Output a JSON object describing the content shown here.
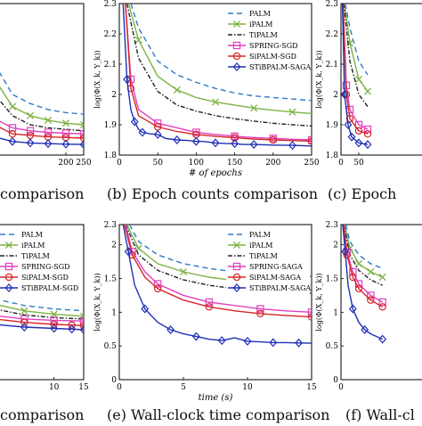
{
  "captions": {
    "top_left": "comparison",
    "top_middle": "(b) Epoch counts comparison",
    "top_right": "(c) Epoch",
    "bottom_left": "comparison",
    "bottom_middle": "(e) Wall-clock time comparison",
    "bottom_right": "(f) Wall-cl"
  },
  "colors": {
    "PALM": "#2c7bc8",
    "iPALM": "#7cb342",
    "TiPALM": "#222222",
    "SPRING": "#e040c0",
    "SiPALM": "#d62728",
    "STiBPALM": "#1f2fb4"
  },
  "chart_data": [
    {
      "id": "a",
      "type": "line",
      "xlim": [
        0,
        250
      ],
      "ylim": [
        1.8,
        2.3
      ],
      "x_ticks": [
        "200",
        "250"
      ],
      "y_ticks": [],
      "xlabel": "",
      "ylabel": "",
      "series": [
        {
          "key": "PALM",
          "x": [
            0,
            50,
            100,
            150,
            200,
            250
          ],
          "y": [
            2.1,
            2.0,
            1.97,
            1.95,
            1.94,
            1.935
          ]
        },
        {
          "key": "iPALM",
          "x": [
            0,
            50,
            100,
            150,
            200,
            250
          ],
          "y": [
            2.05,
            1.96,
            1.93,
            1.915,
            1.905,
            1.9
          ]
        },
        {
          "key": "TiPALM",
          "x": [
            0,
            50,
            100,
            150,
            200,
            250
          ],
          "y": [
            2.0,
            1.93,
            1.9,
            1.89,
            1.885,
            1.88
          ]
        },
        {
          "key": "SPRING",
          "x": [
            0,
            50,
            100,
            150,
            200,
            250
          ],
          "y": [
            1.92,
            1.89,
            1.88,
            1.875,
            1.872,
            1.87
          ]
        },
        {
          "key": "SiPALM",
          "x": [
            0,
            50,
            100,
            150,
            200,
            250
          ],
          "y": [
            1.9,
            1.87,
            1.865,
            1.86,
            1.858,
            1.856
          ]
        },
        {
          "key": "STiBPALM",
          "x": [
            0,
            50,
            100,
            150,
            200,
            250
          ],
          "y": [
            1.86,
            1.845,
            1.84,
            1.838,
            1.836,
            1.835
          ]
        }
      ]
    },
    {
      "id": "b",
      "type": "line",
      "xlim": [
        0,
        250
      ],
      "ylim": [
        1.8,
        2.3
      ],
      "x_ticks": [
        "0",
        "50",
        "100",
        "150",
        "200",
        "250"
      ],
      "y_ticks": [
        "1.8",
        "1.9",
        "2",
        "2.1",
        "2.2",
        "2.3"
      ],
      "xlabel": "# of epochs",
      "ylabel": "log(Φ(X_k, Y_k))",
      "legend": [
        "PALM",
        "iPALM",
        "TiPALM",
        "SPRING-SGD",
        "SiPALM-SGD",
        "STiBPALM-SAGA"
      ],
      "series": [
        {
          "key": "PALM",
          "x": [
            15,
            25,
            50,
            75,
            100,
            125,
            150,
            175,
            200,
            225,
            250
          ],
          "y": [
            2.3,
            2.22,
            2.11,
            2.065,
            2.04,
            2.02,
            2.005,
            1.995,
            1.99,
            1.985,
            1.98
          ]
        },
        {
          "key": "iPALM",
          "x": [
            12,
            25,
            50,
            75,
            100,
            125,
            150,
            175,
            200,
            225,
            250
          ],
          "y": [
            2.3,
            2.18,
            2.06,
            2.015,
            1.99,
            1.975,
            1.965,
            1.955,
            1.948,
            1.942,
            1.937
          ]
        },
        {
          "key": "TiPALM",
          "x": [
            10,
            25,
            50,
            75,
            100,
            125,
            150,
            175,
            200,
            225,
            250
          ],
          "y": [
            2.3,
            2.12,
            2.01,
            1.965,
            1.945,
            1.93,
            1.92,
            1.912,
            1.905,
            1.9,
            1.896
          ]
        },
        {
          "key": "SPRING",
          "x": [
            8,
            15,
            25,
            50,
            75,
            100,
            125,
            150,
            175,
            200,
            225,
            250
          ],
          "y": [
            2.3,
            2.05,
            1.95,
            1.905,
            1.89,
            1.875,
            1.868,
            1.862,
            1.858,
            1.855,
            1.852,
            1.85
          ]
        },
        {
          "key": "SiPALM",
          "x": [
            8,
            15,
            25,
            50,
            75,
            100,
            125,
            150,
            175,
            200,
            225,
            250
          ],
          "y": [
            2.3,
            2.02,
            1.93,
            1.893,
            1.878,
            1.868,
            1.862,
            1.857,
            1.853,
            1.85,
            1.848,
            1.846
          ]
        },
        {
          "key": "STiBPALM",
          "x": [
            5,
            10,
            15,
            20,
            25,
            30,
            40,
            50,
            60,
            75,
            90,
            100,
            110,
            125,
            140,
            150,
            160,
            175,
            200,
            225,
            250
          ],
          "y": [
            2.3,
            2.05,
            1.95,
            1.91,
            1.885,
            1.875,
            1.87,
            1.868,
            1.855,
            1.85,
            1.848,
            1.845,
            1.845,
            1.84,
            1.838,
            1.838,
            1.835,
            1.835,
            1.833,
            1.832,
            1.83
          ]
        }
      ]
    },
    {
      "id": "c",
      "type": "line",
      "xlim": [
        0,
        250
      ],
      "ylim": [
        1.8,
        2.3
      ],
      "x_ticks": [
        "0",
        "50"
      ],
      "y_ticks": [
        "1.8",
        "1.9",
        "2",
        "2.1",
        "2.2",
        "2.3"
      ],
      "xlabel": "",
      "ylabel": "log(Φ(X_k, Y_k))",
      "series": [
        {
          "key": "PALM",
          "x": [
            12,
            25,
            50,
            75
          ],
          "y": [
            2.3,
            2.22,
            2.11,
            2.065
          ]
        },
        {
          "key": "iPALM",
          "x": [
            10,
            25,
            50,
            75
          ],
          "y": [
            2.3,
            2.17,
            2.05,
            2.01
          ]
        },
        {
          "key": "TiPALM",
          "x": [
            8,
            25,
            50,
            75
          ],
          "y": [
            2.3,
            2.11,
            2.0,
            1.96
          ]
        },
        {
          "key": "SPRING",
          "x": [
            6,
            15,
            25,
            50,
            75
          ],
          "y": [
            2.3,
            2.03,
            1.95,
            1.9,
            1.885
          ]
        },
        {
          "key": "SiPALM",
          "x": [
            6,
            15,
            25,
            50,
            75
          ],
          "y": [
            2.3,
            2.0,
            1.92,
            1.88,
            1.87
          ]
        },
        {
          "key": "STiBPALM",
          "x": [
            4,
            10,
            20,
            30,
            50,
            75
          ],
          "y": [
            2.3,
            2.0,
            1.9,
            1.86,
            1.84,
            1.835
          ]
        }
      ]
    },
    {
      "id": "d",
      "type": "line",
      "xlim": [
        0,
        15
      ],
      "ylim": [
        0,
        2.3
      ],
      "x_ticks": [
        "10",
        "15"
      ],
      "y_ticks": [],
      "xlabel": "",
      "ylabel": "",
      "legend": [
        "PALM",
        "iPALM",
        "TiPALM",
        "SPRING-SGD",
        "SiPALM-SGD",
        "STiBPALM-SGD"
      ],
      "series": [
        {
          "key": "PALM",
          "x": [
            0,
            5,
            10,
            15
          ],
          "y": [
            1.2,
            1.1,
            1.05,
            1.02
          ]
        },
        {
          "key": "iPALM",
          "x": [
            0,
            5,
            10,
            15
          ],
          "y": [
            1.12,
            1.02,
            0.97,
            0.94
          ]
        },
        {
          "key": "TiPALM",
          "x": [
            0,
            5,
            10,
            15
          ],
          "y": [
            1.05,
            0.96,
            0.92,
            0.9
          ]
        },
        {
          "key": "SPRING",
          "x": [
            0,
            5,
            10,
            15
          ],
          "y": [
            0.95,
            0.9,
            0.88,
            0.87
          ]
        },
        {
          "key": "SiPALM",
          "x": [
            0,
            5,
            10,
            13,
            15
          ],
          "y": [
            0.9,
            0.85,
            0.82,
            0.81,
            0.8
          ]
        },
        {
          "key": "STiBPALM",
          "x": [
            0,
            5,
            10,
            13,
            15
          ],
          "y": [
            0.82,
            0.78,
            0.76,
            0.75,
            0.74
          ]
        }
      ]
    },
    {
      "id": "e",
      "type": "line",
      "xlim": [
        0,
        15
      ],
      "ylim": [
        0,
        2.3
      ],
      "x_ticks": [
        "0",
        "5",
        "10",
        "15"
      ],
      "y_ticks": [
        "0",
        "0.5",
        "1",
        "1.5",
        "2",
        "2.3"
      ],
      "xlabel": "time (s)",
      "ylabel": "log(Φ(X_k, Y_k))",
      "legend": [
        "PALM",
        "iPALM",
        "TiPALM",
        "SPRING-SAGA",
        "SiPALM-SAGA",
        "STiBPALM-SAGA"
      ],
      "series": [
        {
          "key": "PALM",
          "x": [
            0.8,
            1.5,
            3,
            5,
            7,
            9,
            11,
            13,
            15
          ],
          "y": [
            2.3,
            2.05,
            1.85,
            1.72,
            1.65,
            1.6,
            1.57,
            1.55,
            1.53
          ]
        },
        {
          "key": "iPALM",
          "x": [
            0.6,
            1.5,
            3,
            5,
            7,
            9,
            11,
            13,
            15
          ],
          "y": [
            2.3,
            1.95,
            1.72,
            1.6,
            1.52,
            1.47,
            1.44,
            1.42,
            1.4
          ]
        },
        {
          "key": "TiPALM",
          "x": [
            0.5,
            1.5,
            3,
            5,
            7,
            9,
            11,
            13,
            15
          ],
          "y": [
            2.3,
            1.85,
            1.62,
            1.48,
            1.4,
            1.35,
            1.32,
            1.3,
            1.28
          ]
        },
        {
          "key": "SPRING",
          "x": [
            0.5,
            1,
            2,
            3,
            5,
            7,
            9,
            11,
            13,
            15
          ],
          "y": [
            2.3,
            1.9,
            1.6,
            1.42,
            1.25,
            1.15,
            1.1,
            1.05,
            1.02,
            1.0
          ]
        },
        {
          "key": "SiPALM",
          "x": [
            0.4,
            1,
            2,
            3,
            5,
            7,
            9,
            11,
            13,
            15
          ],
          "y": [
            2.3,
            1.85,
            1.52,
            1.35,
            1.18,
            1.08,
            1.02,
            0.98,
            0.95,
            0.93
          ]
        },
        {
          "key": "STiBPALM",
          "x": [
            0.3,
            0.7,
            1.2,
            2,
            3,
            4,
            5,
            6,
            7,
            8,
            9,
            10,
            11,
            12,
            13,
            14,
            15
          ],
          "y": [
            2.3,
            1.9,
            1.4,
            1.05,
            0.85,
            0.74,
            0.68,
            0.64,
            0.6,
            0.58,
            0.62,
            0.57,
            0.56,
            0.55,
            0.55,
            0.545,
            0.54
          ]
        }
      ]
    },
    {
      "id": "f",
      "type": "line",
      "xlim": [
        0,
        15
      ],
      "ylim": [
        0,
        2.3
      ],
      "x_ticks": [
        "0"
      ],
      "y_ticks": [
        "0",
        "0.5",
        "1",
        "1.5",
        "2",
        "2.3"
      ],
      "xlabel": "",
      "ylabel": "log(Φ(X_k, Y_k))",
      "series": [
        {
          "key": "PALM",
          "x": [
            0.8,
            1.5,
            3,
            5,
            7
          ],
          "y": [
            2.3,
            2.05,
            1.85,
            1.72,
            1.65
          ]
        },
        {
          "key": "iPALM",
          "x": [
            0.6,
            1.5,
            3,
            5,
            7
          ],
          "y": [
            2.3,
            1.95,
            1.72,
            1.6,
            1.52
          ]
        },
        {
          "key": "TiPALM",
          "x": [
            0.5,
            1.5,
            3,
            5,
            7
          ],
          "y": [
            2.3,
            1.85,
            1.62,
            1.48,
            1.4
          ]
        },
        {
          "key": "SPRING",
          "x": [
            0.5,
            1,
            2,
            3,
            5,
            7
          ],
          "y": [
            2.3,
            1.9,
            1.6,
            1.42,
            1.25,
            1.15
          ]
        },
        {
          "key": "SiPALM",
          "x": [
            0.4,
            1,
            2,
            3,
            5,
            7
          ],
          "y": [
            2.3,
            1.85,
            1.52,
            1.35,
            1.18,
            1.08
          ]
        },
        {
          "key": "STiBPALM",
          "x": [
            0.3,
            0.7,
            1.2,
            2,
            3,
            4,
            5,
            7
          ],
          "y": [
            2.3,
            1.9,
            1.4,
            1.05,
            0.85,
            0.74,
            0.68,
            0.6
          ]
        }
      ]
    }
  ]
}
